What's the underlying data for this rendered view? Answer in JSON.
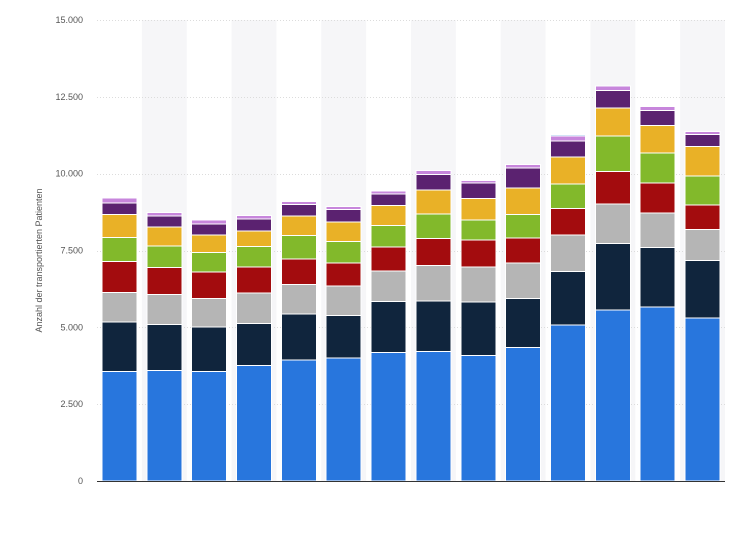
{
  "chart_data": {
    "type": "bar",
    "stacked": true,
    "title": "",
    "xlabel": "",
    "ylabel": "Anzahl der transportierten Patienten",
    "ylim": [
      0,
      15000
    ],
    "yticks": [
      0,
      2500,
      5000,
      7500,
      10000,
      12500,
      15000
    ],
    "ytick_labels": [
      "0",
      "2.500",
      "5.000",
      "7.500",
      "10.000",
      "12.500",
      "15.000"
    ],
    "grid": true,
    "legend": "none",
    "categories": [
      "",
      "",
      "",
      "",
      "",
      "",
      "",
      "",
      "",
      "",
      "",
      "",
      "",
      ""
    ],
    "series": [
      {
        "color": "#2876dd",
        "values": [
          3560,
          3600,
          3560,
          3760,
          3940,
          4010,
          4180,
          4220,
          4080,
          4340,
          5080,
          5560,
          5660,
          5300
        ]
      },
      {
        "color": "#10253d",
        "values": [
          1620,
          1500,
          1450,
          1360,
          1500,
          1380,
          1660,
          1640,
          1740,
          1600,
          1730,
          2160,
          1930,
          1880
        ]
      },
      {
        "color": "#b5b5b5",
        "values": [
          950,
          970,
          930,
          990,
          950,
          950,
          1000,
          1150,
          1150,
          1150,
          1200,
          1290,
          1130,
          1000
        ]
      },
      {
        "color": "#a30c0e",
        "values": [
          1010,
          870,
          860,
          860,
          830,
          760,
          780,
          880,
          870,
          820,
          850,
          1060,
          970,
          800
        ]
      },
      {
        "color": "#82b92b",
        "values": [
          790,
          700,
          640,
          660,
          760,
          700,
          690,
          790,
          650,
          760,
          800,
          1160,
          990,
          940
        ]
      },
      {
        "color": "#e9b127",
        "values": [
          740,
          630,
          560,
          500,
          650,
          620,
          650,
          790,
          710,
          860,
          890,
          900,
          880,
          960
        ]
      },
      {
        "color": "#5b2270",
        "values": [
          380,
          360,
          370,
          400,
          360,
          420,
          380,
          500,
          490,
          660,
          510,
          570,
          500,
          400
        ]
      },
      {
        "color": "#c786dc",
        "values": [
          160,
          110,
          120,
          110,
          100,
          90,
          100,
          130,
          80,
          110,
          160,
          150,
          120,
          90
        ]
      },
      {
        "color": "#a6c8ee",
        "values": [
          0,
          0,
          0,
          0,
          0,
          0,
          0,
          0,
          0,
          0,
          60,
          0,
          0,
          0
        ]
      }
    ],
    "colors": {
      "grid": "#dcdcdc",
      "axis": "#333333",
      "band": "#f6f6f8",
      "text": "#555555"
    }
  }
}
